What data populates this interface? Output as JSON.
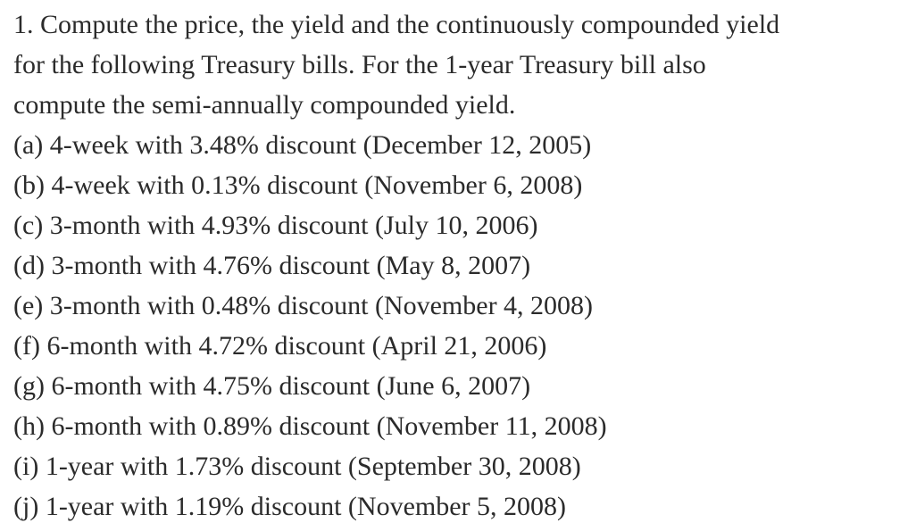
{
  "question": {
    "lines": [
      "1. Compute the price, the yield and the continuously compounded yield",
      "for the following Treasury bills. For the 1-year Treasury bill also",
      "compute the semi-annually compounded yield."
    ],
    "items": [
      "(a) 4-week with 3.48% discount (December 12, 2005)",
      "(b) 4-week with 0.13% discount (November 6, 2008)",
      "(c) 3-month with 4.93% discount (July 10, 2006)",
      "(d) 3-month with 4.76% discount (May 8, 2007)",
      "(e) 3-month with 0.48% discount (November 4, 2008)",
      "(f) 6-month with 4.72% discount (April 21, 2006)",
      "(g) 6-month with 4.75% discount (June 6, 2007)",
      "(h) 6-month with 0.89% discount (November 11, 2008)",
      "(i) 1-year with 1.73% discount (September 30, 2008)",
      "(j) 1-year with 1.19% discount (November 5, 2008)"
    ]
  }
}
